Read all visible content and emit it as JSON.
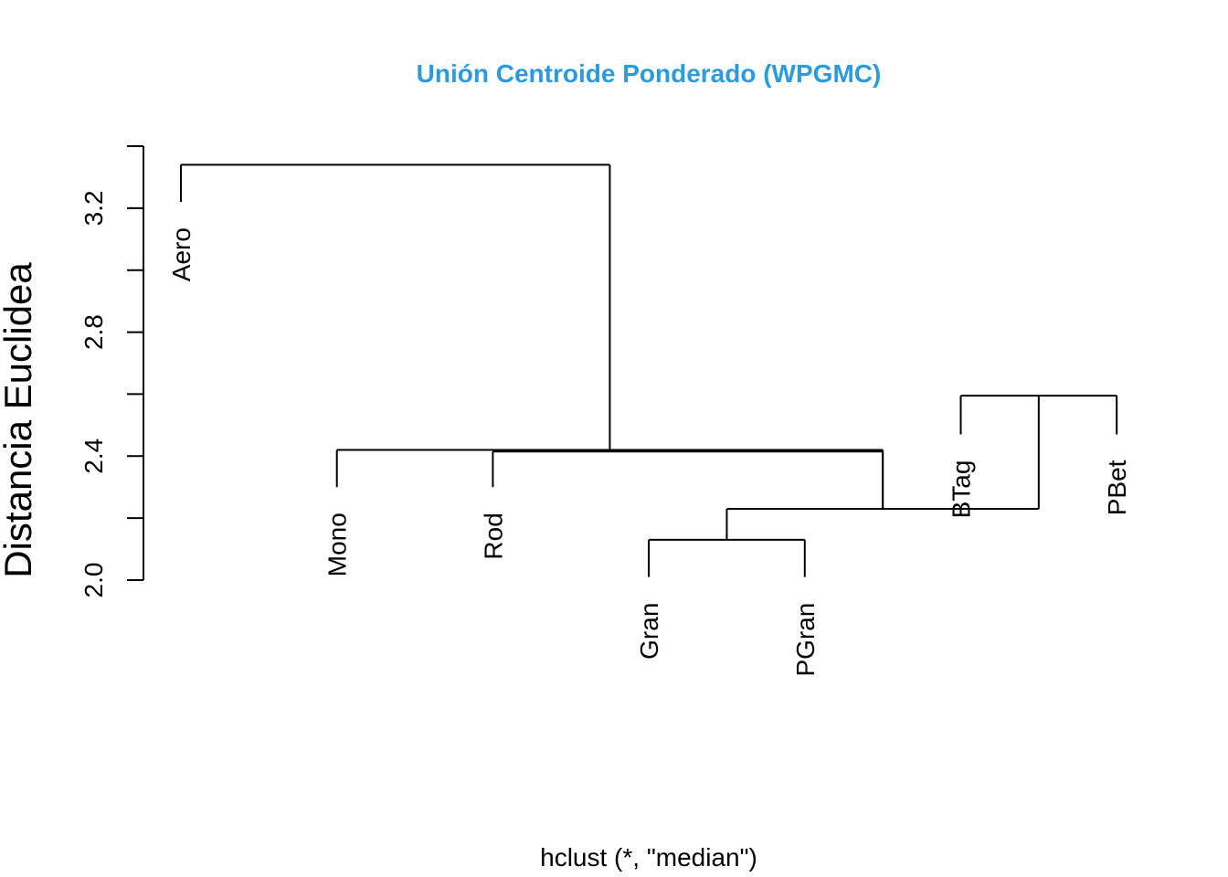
{
  "chart_data": {
    "type": "dendrogram",
    "title": "Unión Centroide Ponderado (WPGMC)",
    "title_color": "#2B9BE0",
    "ylabel": "Distancia Euclidea",
    "xlabel": "hclust (*, \"median\")",
    "ylim": [
      2.0,
      3.4
    ],
    "yticks": [
      2.0,
      2.4,
      2.8,
      3.2
    ],
    "yticks_minor": [
      2.0,
      2.2,
      2.4,
      2.6,
      2.8,
      3.0,
      3.2,
      3.4
    ],
    "leaves": [
      {
        "label": "Aero",
        "top": 3.22
      },
      {
        "label": "Mono",
        "top": 2.3
      },
      {
        "label": "Rod",
        "top": 2.3
      },
      {
        "label": "Gran",
        "top": 2.01
      },
      {
        "label": "PGran",
        "top": 2.01
      },
      {
        "label": "BTag",
        "top": 2.47
      },
      {
        "label": "PBet",
        "top": 2.47
      }
    ],
    "merges": [
      {
        "left": "leaf:Gran",
        "right": "leaf:PGran",
        "height": 2.13
      },
      {
        "left": "leaf:BTag",
        "right": "leaf:PBet",
        "height": 2.595
      },
      {
        "left": "merge:0",
        "right": "merge:1",
        "height": 2.23
      },
      {
        "left": "leaf:Rod",
        "right": "merge:2",
        "height": 2.415
      },
      {
        "left": "leaf:Mono",
        "right": "merge:2",
        "height": 2.42
      },
      {
        "left": "leaf:Aero",
        "right": "merge:4",
        "height": 3.34
      }
    ]
  }
}
